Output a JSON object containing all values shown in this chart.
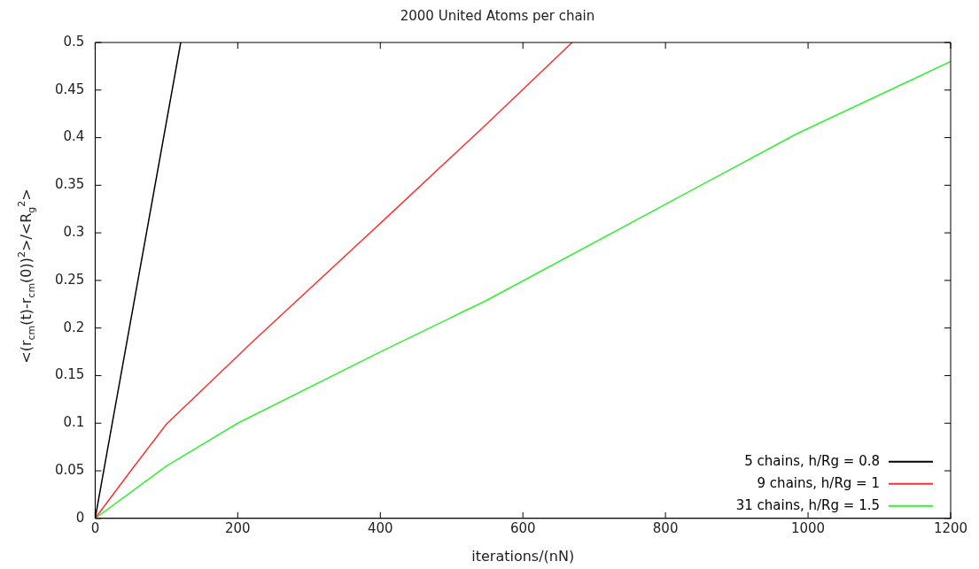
{
  "chart_data": {
    "type": "line",
    "title": "2000 United Atoms per chain",
    "xlabel": "iterations/(nN)",
    "ylabel": "<(r$_{cm}$(t)-r$_{cm}$(0))$^{2}$>/<R$_{g}$$^{2}$>",
    "series": [
      {
        "name": "5 chains, h/Rg = 0.8",
        "color": "#000000",
        "x": [
          0,
          60,
          120
        ],
        "values": [
          0,
          0.25,
          0.5
        ]
      },
      {
        "name": "9 chains, h/Rg = 1",
        "color": "#ff3030",
        "x": [
          0,
          50,
          100,
          220,
          400,
          550,
          669
        ],
        "values": [
          0,
          0.05,
          0.099,
          0.185,
          0.31,
          0.415,
          0.5
        ]
      },
      {
        "name": "31 chains, h/Rg = 1.5",
        "color": "#30f030",
        "x": [
          0,
          100,
          200,
          400,
          549,
          800,
          984,
          1200
        ],
        "values": [
          0,
          0.055,
          0.1,
          0.175,
          0.229,
          0.33,
          0.404,
          0.48
        ]
      }
    ],
    "xlim": [
      0,
      1200
    ],
    "xticks": [
      0,
      200,
      400,
      600,
      800,
      1000,
      1200
    ],
    "ylim": [
      0,
      0.5
    ],
    "yticks": [
      0,
      0.05,
      0.1,
      0.15,
      0.2,
      0.25,
      0.3,
      0.35,
      0.4,
      0.45,
      0.5
    ],
    "grid": false,
    "legend": "bottom right",
    "marker": "none",
    "line_style": "solid"
  }
}
